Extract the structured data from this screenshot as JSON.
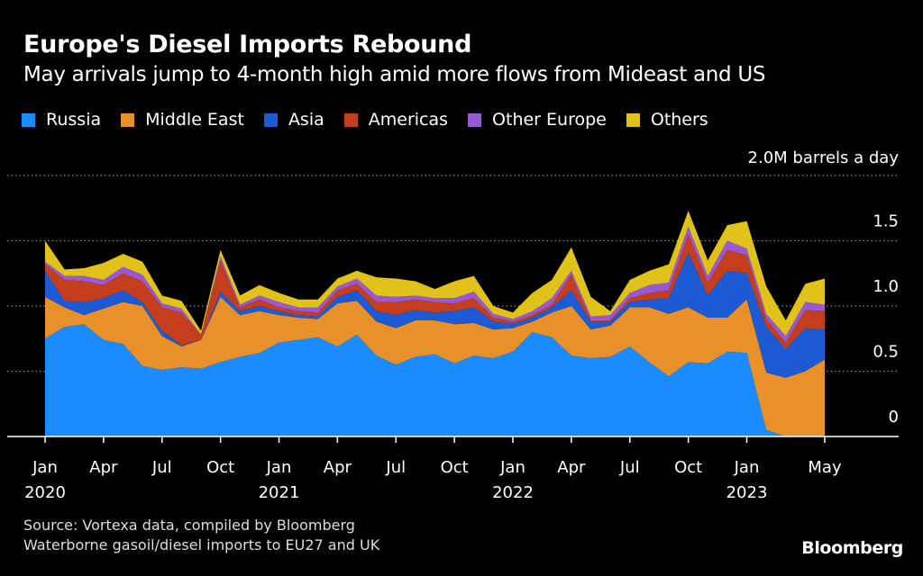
{
  "chart_data": {
    "type": "area",
    "stacked": true,
    "title": "Europe's Diesel Imports Rebound",
    "subtitle": "May arrivals jump to 4-month high amid more flows from Mideast and US",
    "ylabel": "2.0M barrels a day",
    "ylim": [
      0,
      2.0
    ],
    "yticks": [
      0,
      0.5,
      1.0,
      1.5
    ],
    "ytick_labels": [
      "0",
      "0.5",
      "1.0",
      "1.5"
    ],
    "x_count": 41,
    "x_ticks": [
      {
        "index": 0,
        "label": "Jan",
        "year": "2020"
      },
      {
        "index": 3,
        "label": "Apr",
        "year": ""
      },
      {
        "index": 6,
        "label": "Jul",
        "year": ""
      },
      {
        "index": 9,
        "label": "Oct",
        "year": ""
      },
      {
        "index": 12,
        "label": "Jan",
        "year": "2021"
      },
      {
        "index": 15,
        "label": "Apr",
        "year": ""
      },
      {
        "index": 18,
        "label": "Jul",
        "year": ""
      },
      {
        "index": 21,
        "label": "Oct",
        "year": ""
      },
      {
        "index": 24,
        "label": "Jan",
        "year": "2022"
      },
      {
        "index": 27,
        "label": "Apr",
        "year": ""
      },
      {
        "index": 30,
        "label": "Jul",
        "year": ""
      },
      {
        "index": 33,
        "label": "Oct",
        "year": ""
      },
      {
        "index": 36,
        "label": "Jan",
        "year": "2023"
      },
      {
        "index": 40,
        "label": "May",
        "year": ""
      }
    ],
    "series": [
      {
        "name": "Russia",
        "color": "#1a8cff",
        "values": [
          0.75,
          0.84,
          0.86,
          0.74,
          0.71,
          0.54,
          0.51,
          0.53,
          0.52,
          0.57,
          0.61,
          0.64,
          0.72,
          0.74,
          0.76,
          0.69,
          0.78,
          0.62,
          0.55,
          0.61,
          0.63,
          0.56,
          0.62,
          0.6,
          0.65,
          0.8,
          0.76,
          0.62,
          0.6,
          0.61,
          0.69,
          0.57,
          0.46,
          0.57,
          0.56,
          0.65,
          0.64,
          0.05,
          0.0,
          0.0,
          0.0
        ]
      },
      {
        "name": "Middle East",
        "color": "#e8902a",
        "values": [
          0.32,
          0.15,
          0.07,
          0.24,
          0.32,
          0.46,
          0.26,
          0.16,
          0.22,
          0.5,
          0.32,
          0.32,
          0.21,
          0.17,
          0.14,
          0.33,
          0.26,
          0.26,
          0.28,
          0.28,
          0.26,
          0.3,
          0.25,
          0.22,
          0.18,
          0.08,
          0.19,
          0.38,
          0.22,
          0.24,
          0.3,
          0.42,
          0.48,
          0.42,
          0.35,
          0.26,
          0.41,
          0.44,
          0.45,
          0.5,
          0.59
        ]
      },
      {
        "name": "Asia",
        "color": "#1c5ad6",
        "values": [
          0.2,
          0.05,
          0.1,
          0.08,
          0.09,
          0.03,
          0.04,
          0.01,
          0.0,
          0.04,
          0.03,
          0.04,
          0.03,
          0.02,
          0.02,
          0.05,
          0.08,
          0.08,
          0.1,
          0.08,
          0.06,
          0.1,
          0.12,
          0.06,
          0.03,
          0.03,
          0.04,
          0.12,
          0.06,
          0.03,
          0.04,
          0.06,
          0.12,
          0.42,
          0.17,
          0.36,
          0.2,
          0.35,
          0.22,
          0.33,
          0.23
        ]
      },
      {
        "name": "Americas",
        "color": "#c43d1c",
        "values": [
          0.05,
          0.16,
          0.16,
          0.1,
          0.13,
          0.16,
          0.18,
          0.25,
          0.04,
          0.24,
          0.03,
          0.05,
          0.03,
          0.03,
          0.03,
          0.05,
          0.05,
          0.07,
          0.1,
          0.08,
          0.08,
          0.06,
          0.07,
          0.03,
          0.02,
          0.02,
          0.02,
          0.12,
          0.01,
          0.01,
          0.03,
          0.05,
          0.06,
          0.14,
          0.1,
          0.16,
          0.14,
          0.06,
          0.05,
          0.14,
          0.14
        ]
      },
      {
        "name": "Other Europe",
        "color": "#9a59d4",
        "values": [
          0.02,
          0.03,
          0.04,
          0.04,
          0.05,
          0.05,
          0.03,
          0.03,
          0.0,
          0.03,
          0.02,
          0.03,
          0.04,
          0.03,
          0.04,
          0.03,
          0.04,
          0.05,
          0.04,
          0.03,
          0.03,
          0.04,
          0.05,
          0.03,
          0.02,
          0.03,
          0.05,
          0.03,
          0.03,
          0.04,
          0.04,
          0.06,
          0.06,
          0.06,
          0.05,
          0.07,
          0.05,
          0.04,
          0.05,
          0.06,
          0.05
        ]
      },
      {
        "name": "Others",
        "color": "#e0c21a",
        "values": [
          0.16,
          0.05,
          0.06,
          0.13,
          0.1,
          0.1,
          0.06,
          0.06,
          0.03,
          0.05,
          0.07,
          0.08,
          0.07,
          0.06,
          0.06,
          0.06,
          0.06,
          0.14,
          0.14,
          0.11,
          0.07,
          0.13,
          0.12,
          0.06,
          0.05,
          0.14,
          0.14,
          0.18,
          0.15,
          0.03,
          0.1,
          0.11,
          0.14,
          0.12,
          0.12,
          0.12,
          0.21,
          0.21,
          0.12,
          0.14,
          0.2
        ]
      }
    ]
  },
  "source": {
    "line1": "Source: Vortexa data, compiled by Bloomberg",
    "line2": "Waterborne gasoil/diesel imports to EU27 and UK"
  },
  "brand": "Bloomberg"
}
